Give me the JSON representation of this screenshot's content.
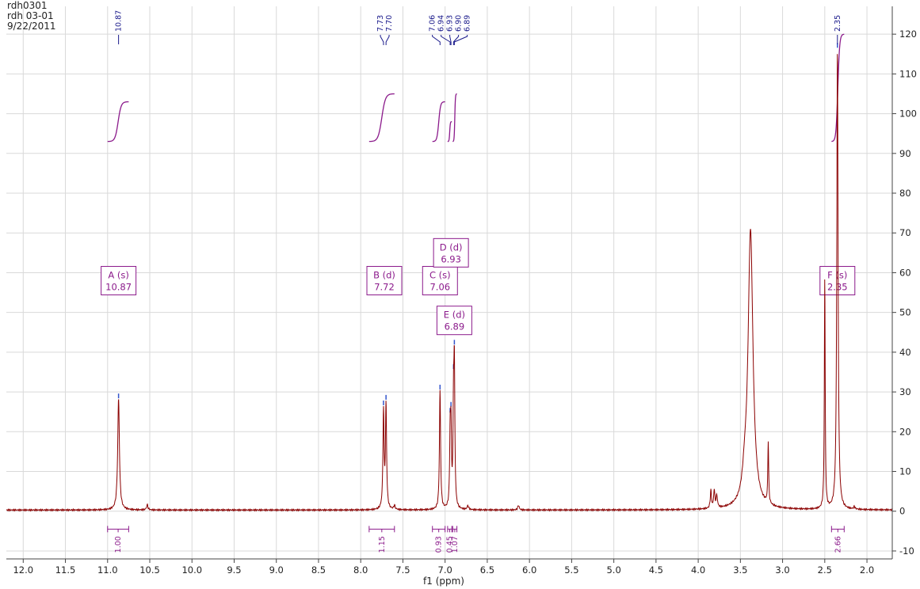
{
  "header": {
    "line1": "rdh0301",
    "line2": "rdh 03-01",
    "line3": "9/22/2011"
  },
  "chart_data": {
    "type": "line",
    "xlabel": "f1 (ppm)",
    "xlim": [
      12.2,
      1.7
    ],
    "ylim": [
      -12,
      127
    ],
    "x_ticks": [
      "12.0",
      "11.5",
      "11.0",
      "10.5",
      "10.0",
      "9.5",
      "9.0",
      "8.5",
      "8.0",
      "7.5",
      "7.0",
      "6.5",
      "6.0",
      "5.5",
      "5.0",
      "4.5",
      "4.0",
      "3.5",
      "3.0",
      "2.5",
      "2.0"
    ],
    "y_ticks": [
      "-10",
      "0",
      "10",
      "20",
      "30",
      "40",
      "50",
      "60",
      "70",
      "80",
      "90",
      "100",
      "110",
      "120"
    ],
    "grid": true,
    "peaks": [
      {
        "ppm": 10.87,
        "height": 28,
        "width": 0.012
      },
      {
        "ppm": 10.53,
        "height": 1.3,
        "width": 0.01
      },
      {
        "ppm": 7.73,
        "height": 24.5,
        "width": 0.008
      },
      {
        "ppm": 7.7,
        "height": 26,
        "width": 0.008
      },
      {
        "ppm": 7.6,
        "height": 1,
        "width": 0.01
      },
      {
        "ppm": 7.06,
        "height": 30,
        "width": 0.008
      },
      {
        "ppm": 6.94,
        "height": 17,
        "width": 0.007
      },
      {
        "ppm": 6.93,
        "height": 18,
        "width": 0.007
      },
      {
        "ppm": 6.9,
        "height": 23,
        "width": 0.007
      },
      {
        "ppm": 6.89,
        "height": 33,
        "width": 0.007
      },
      {
        "ppm": 6.73,
        "height": 1,
        "width": 0.01
      },
      {
        "ppm": 6.13,
        "height": 1.2,
        "width": 0.01
      },
      {
        "ppm": 3.85,
        "height": 4.5,
        "width": 0.008
      },
      {
        "ppm": 3.81,
        "height": 4.5,
        "width": 0.008
      },
      {
        "ppm": 3.78,
        "height": 3,
        "width": 0.01
      },
      {
        "ppm": 3.45,
        "height": 4.5,
        "width": 0.03
      },
      {
        "ppm": 3.38,
        "height": 70,
        "width": 0.035
      },
      {
        "ppm": 3.17,
        "height": 15.5,
        "width": 0.006
      },
      {
        "ppm": 2.5,
        "height": 58,
        "width": 0.006
      },
      {
        "ppm": 2.35,
        "height": 116,
        "width": 0.009
      },
      {
        "ppm": 2.15,
        "height": 0.6,
        "width": 0.01
      }
    ],
    "peak_labels": [
      "10.87",
      "7.73",
      "7.70",
      "7.06",
      "6.94",
      "6.93",
      "6.90",
      "6.89",
      "2.35"
    ],
    "peak_label_ppm": [
      10.87,
      7.73,
      7.7,
      7.06,
      6.94,
      6.93,
      6.9,
      6.89,
      2.35
    ],
    "multiplets": [
      {
        "name": "A (s)",
        "shift": "10.87",
        "ppm": 10.87,
        "y": 58
      },
      {
        "name": "B (d)",
        "shift": "7.72",
        "ppm": 7.72,
        "y": 58
      },
      {
        "name": "C (s)",
        "shift": "7.06",
        "ppm": 7.06,
        "y": 58
      },
      {
        "name": "D (d)",
        "shift": "6.93",
        "ppm": 6.93,
        "y": 65
      },
      {
        "name": "E (d)",
        "shift": "6.89",
        "ppm": 6.89,
        "y": 48
      },
      {
        "name": "F (s)",
        "shift": "2.35",
        "ppm": 2.35,
        "y": 58
      }
    ],
    "integrals": [
      {
        "from": 11.0,
        "to": 10.75,
        "value": "1.00",
        "y_start": 93,
        "y_end": 103
      },
      {
        "from": 7.9,
        "to": 7.6,
        "value": "1.15",
        "y_start": 93,
        "y_end": 105
      },
      {
        "from": 7.15,
        "to": 7.0,
        "value": "0.93",
        "y_start": 93,
        "y_end": 103
      },
      {
        "from": 6.97,
        "to": 6.92,
        "value": "0.45",
        "y_start": 93,
        "y_end": 98
      },
      {
        "from": 6.91,
        "to": 6.86,
        "value": "1.07",
        "y_start": 93,
        "y_end": 105
      },
      {
        "from": 2.42,
        "to": 2.27,
        "value": "2.66",
        "y_start": 93,
        "y_end": 120
      }
    ],
    "colors": {
      "spectrum": "#8b0000",
      "integral": "#8b1a8b",
      "peak_label": "#1a1a8b",
      "grid": "#d9d9d9"
    }
  }
}
